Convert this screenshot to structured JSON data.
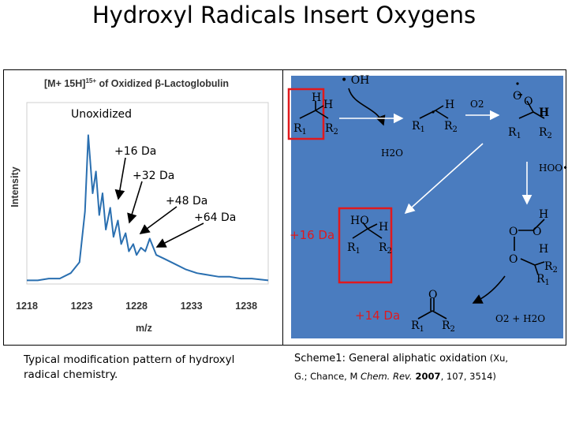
{
  "slide": {
    "title": "Hydroxyl Radicals Insert Oxygens"
  },
  "chart_data": {
    "type": "line",
    "title": "[M+ 15H]",
    "title_sup": "15+",
    "title_suffix": " of Oxidized β-Lactoglobulin",
    "xlabel": "m/z",
    "ylabel": "Intensity",
    "xlim": [
      1218,
      1240
    ],
    "ylim": [
      0,
      100
    ],
    "xticks": [
      "1218",
      "1223",
      "1228",
      "1233",
      "1238"
    ],
    "series": [
      {
        "color": "#2a6fb0",
        "x": [
          1218,
          1219,
          1220,
          1221,
          1222,
          1222.8,
          1223.3,
          1223.6,
          1224.0,
          1224.3,
          1224.6,
          1224.9,
          1225.2,
          1225.6,
          1225.9,
          1226.3,
          1226.6,
          1227.0,
          1227.3,
          1227.7,
          1228.0,
          1228.4,
          1228.8,
          1229.2,
          1229.8,
          1230.5,
          1231.5,
          1232.5,
          1233.5,
          1234.5,
          1235.5,
          1236.5,
          1237.5,
          1238.5,
          1240
        ],
        "y": [
          2,
          2,
          3,
          3,
          6,
          12,
          40,
          82,
          50,
          62,
          38,
          50,
          30,
          42,
          26,
          35,
          22,
          28,
          18,
          22,
          16,
          20,
          18,
          25,
          16,
          14,
          11,
          8,
          6,
          5,
          4,
          4,
          3,
          3,
          2
        ]
      }
    ],
    "annotations": [
      {
        "label": "Unoxidized"
      },
      {
        "label": "+16 Da"
      },
      {
        "label": "+32 Da"
      },
      {
        "label": "+48 Da"
      },
      {
        "label": "+64 Da"
      }
    ],
    "grid": false
  },
  "scheme": {
    "background": "#4a7cbf",
    "highlight": "#e0191d",
    "labels": {
      "oh": "• OH",
      "h2o": "H2O",
      "o2": "O2",
      "hoo": "HOO•",
      "plus16": "+16 Da",
      "plus14": "+14 Da",
      "o2h2o": "O2 + H2O"
    }
  },
  "captions": {
    "left": "Typical modification pattern of hydroxyl radical chemistry.",
    "right_main": "Scheme1: General aliphatic oxidation",
    "right_ref_a": " (Xu,",
    "right_ref_b": "G.; Chance, M ",
    "right_ref_journal": "Chem. Rev.",
    "right_ref_year": " 2007",
    "right_ref_tail": ", 107, 3514)"
  }
}
